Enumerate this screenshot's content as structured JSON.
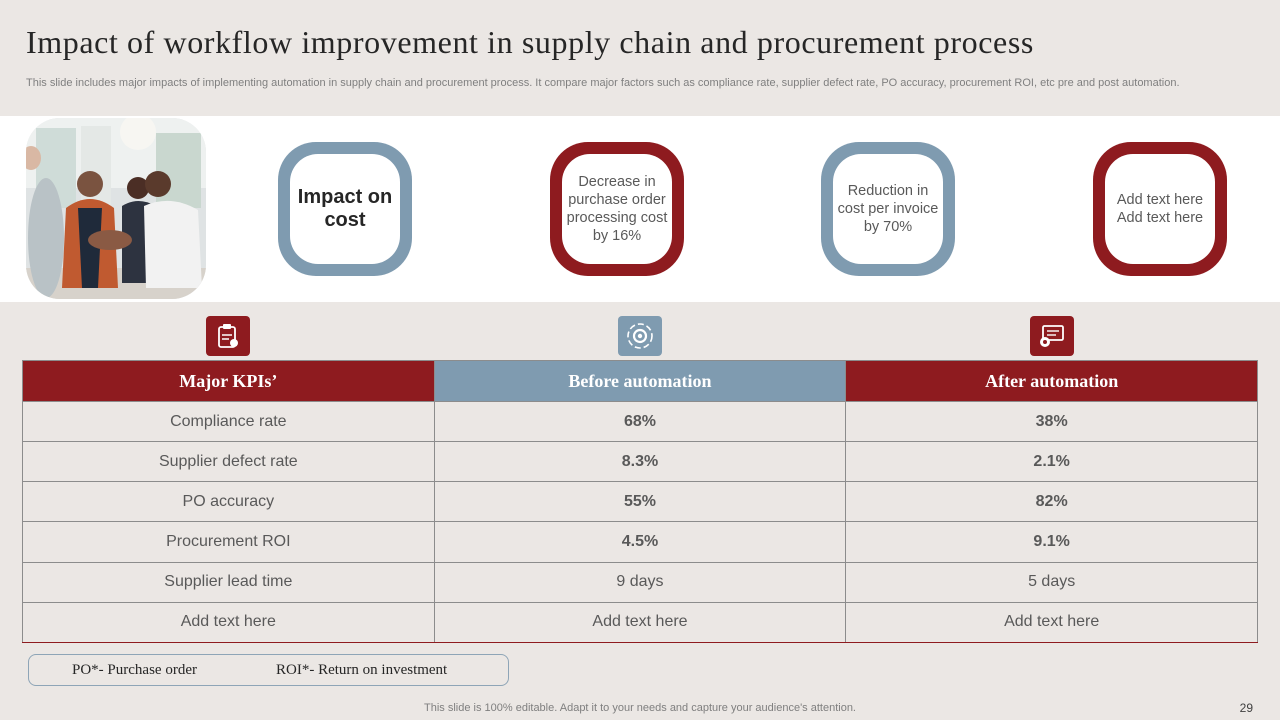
{
  "slide": {
    "title": "Impact of workflow improvement in supply chain and procurement process",
    "subtitle": "This slide includes major impacts of implementing automation in supply chain and procurement process. It compare major factors such as compliance rate, supplier defect rate, PO accuracy, procurement ROI, etc pre and post automation.",
    "footer": "This slide is 100% editable. Adapt it to your needs and capture your audience's attention.",
    "page_number": "29"
  },
  "photo": {
    "name": "team-hands-together-photo"
  },
  "impact_boxes": [
    {
      "text": "Impact on cost",
      "color": "#7f9bb0"
    },
    {
      "text": "Decrease in purchase order processing cost by 16%",
      "color": "#8e1b1f"
    },
    {
      "text": "Reduction in cost per invoice by 70%",
      "color": "#7f9bb0"
    },
    {
      "text": "Add text here Add text here",
      "color": "#8e1b1f"
    }
  ],
  "icons": [
    "clipboard-icon",
    "gear-cycle-icon",
    "monitor-gear-icon"
  ],
  "table": {
    "headers": [
      "Major KPIs’",
      "Before automation",
      "After automation"
    ],
    "rows": [
      [
        "Compliance rate",
        "68%",
        "38%"
      ],
      [
        "Supplier defect rate",
        "8.3%",
        "2.1%"
      ],
      [
        "PO accuracy",
        "55%",
        "82%"
      ],
      [
        "Procurement  ROI",
        "4.5%",
        "9.1%"
      ],
      [
        "Supplier lead time",
        "9 days",
        "5 days"
      ],
      [
        "Add text here",
        "Add text here",
        "Add text here"
      ]
    ]
  },
  "legend": {
    "po": "PO*- Purchase order",
    "roi": "ROI*- Return on investment"
  },
  "colors": {
    "red": "#8e1b1f",
    "blue": "#7f9bb0",
    "background": "#ebe7e4"
  }
}
